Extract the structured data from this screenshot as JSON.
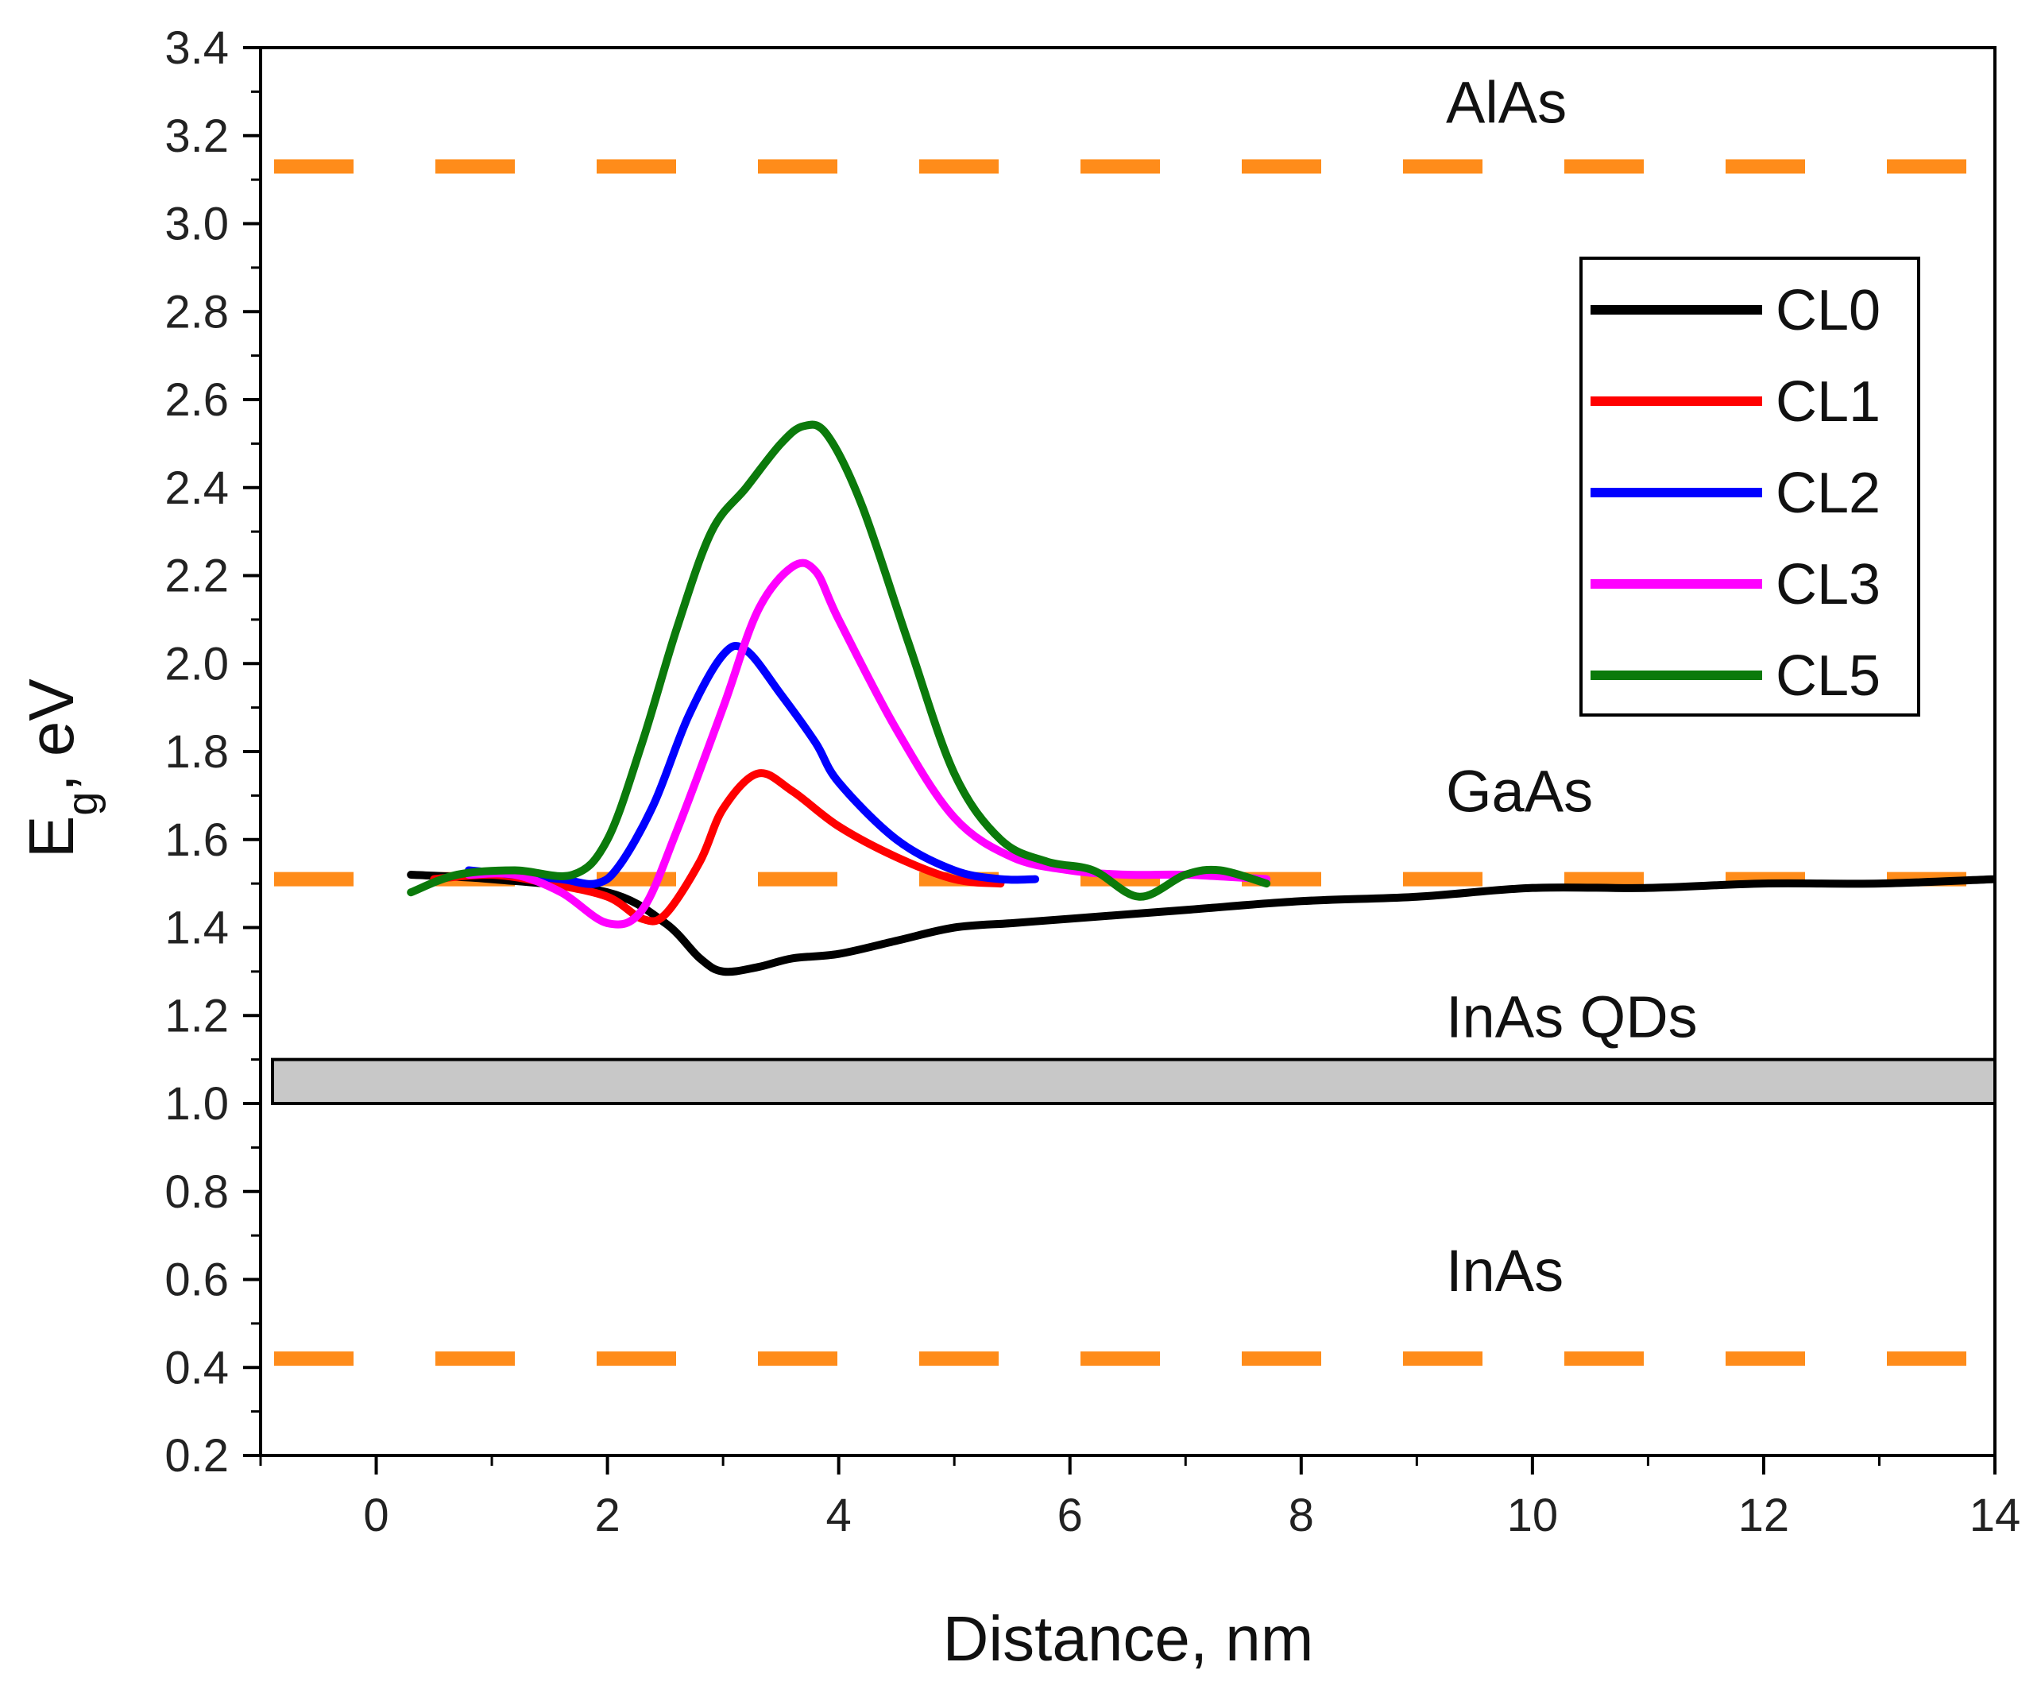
{
  "chart_data": {
    "type": "line",
    "xlabel": "Distance, nm",
    "ylabel_main": "E",
    "ylabel_sub": "g",
    "ylabel_rest": ", eV",
    "xlim": [
      -1,
      14
    ],
    "ylim": [
      0.2,
      3.4
    ],
    "xticks": [
      0,
      2,
      4,
      6,
      8,
      10,
      12,
      14
    ],
    "yticks": [
      0.2,
      0.4,
      0.6,
      0.8,
      1.0,
      1.2,
      1.4,
      1.6,
      1.8,
      2.0,
      2.2,
      2.4,
      2.6,
      2.8,
      3.0,
      3.2,
      3.4
    ],
    "reference_lines": [
      {
        "label": "AlAs",
        "y": 3.13,
        "color": "#ff8c1a"
      },
      {
        "label": "GaAs",
        "y": 1.51,
        "color": "#ff8c1a"
      },
      {
        "label": "InAs",
        "y": 0.42,
        "color": "#ff8c1a"
      }
    ],
    "band": {
      "label": "InAs QDs",
      "y0": 1.0,
      "y1": 1.1,
      "color": "#c8c8c8"
    },
    "legend_position": "top-right",
    "series": [
      {
        "name": "CL0",
        "color": "#000000",
        "x": [
          0.3,
          1.0,
          2.0,
          2.5,
          2.8,
          3.0,
          3.3,
          3.6,
          4.0,
          4.5,
          5.0,
          5.5,
          6.0,
          7.0,
          8.0,
          9.0,
          10.0,
          11.0,
          12.0,
          13.0,
          14.0
        ],
        "y": [
          1.52,
          1.51,
          1.48,
          1.41,
          1.33,
          1.3,
          1.31,
          1.33,
          1.34,
          1.37,
          1.4,
          1.41,
          1.42,
          1.44,
          1.46,
          1.47,
          1.49,
          1.49,
          1.5,
          1.5,
          1.51
        ]
      },
      {
        "name": "CL1",
        "color": "#ff0000",
        "x": [
          0.5,
          1.0,
          1.5,
          2.0,
          2.3,
          2.5,
          2.8,
          3.0,
          3.3,
          3.6,
          4.0,
          4.5,
          5.0,
          5.4
        ],
        "y": [
          1.51,
          1.52,
          1.5,
          1.47,
          1.42,
          1.43,
          1.55,
          1.67,
          1.75,
          1.71,
          1.63,
          1.56,
          1.51,
          1.5
        ]
      },
      {
        "name": "CL2",
        "color": "#0000ff",
        "x": [
          0.8,
          1.2,
          1.6,
          1.9,
          2.1,
          2.4,
          2.7,
          3.0,
          3.2,
          3.5,
          3.8,
          4.0,
          4.5,
          5.0,
          5.4,
          5.7
        ],
        "y": [
          1.53,
          1.52,
          1.51,
          1.5,
          1.54,
          1.68,
          1.88,
          2.02,
          2.03,
          1.93,
          1.82,
          1.73,
          1.6,
          1.53,
          1.51,
          1.51
        ]
      },
      {
        "name": "CL3",
        "color": "#ff00ff",
        "x": [
          0.8,
          1.2,
          1.6,
          2.0,
          2.3,
          2.6,
          3.0,
          3.3,
          3.6,
          3.8,
          4.0,
          4.5,
          5.0,
          5.5,
          6.0,
          6.5,
          7.0,
          7.7
        ],
        "y": [
          1.52,
          1.52,
          1.48,
          1.41,
          1.44,
          1.62,
          1.9,
          2.12,
          2.22,
          2.21,
          2.1,
          1.85,
          1.65,
          1.56,
          1.53,
          1.52,
          1.52,
          1.51
        ]
      },
      {
        "name": "CL5",
        "color": "#0b7a0b",
        "x": [
          0.3,
          0.7,
          1.2,
          1.7,
          2.0,
          2.3,
          2.6,
          2.9,
          3.2,
          3.5,
          3.7,
          3.9,
          4.2,
          4.6,
          5.0,
          5.4,
          5.8,
          6.2,
          6.6,
          7.0,
          7.3,
          7.7
        ],
        "y": [
          1.48,
          1.52,
          1.53,
          1.52,
          1.6,
          1.82,
          2.08,
          2.3,
          2.4,
          2.5,
          2.54,
          2.52,
          2.36,
          2.05,
          1.75,
          1.6,
          1.55,
          1.53,
          1.47,
          1.52,
          1.53,
          1.5
        ]
      }
    ]
  }
}
